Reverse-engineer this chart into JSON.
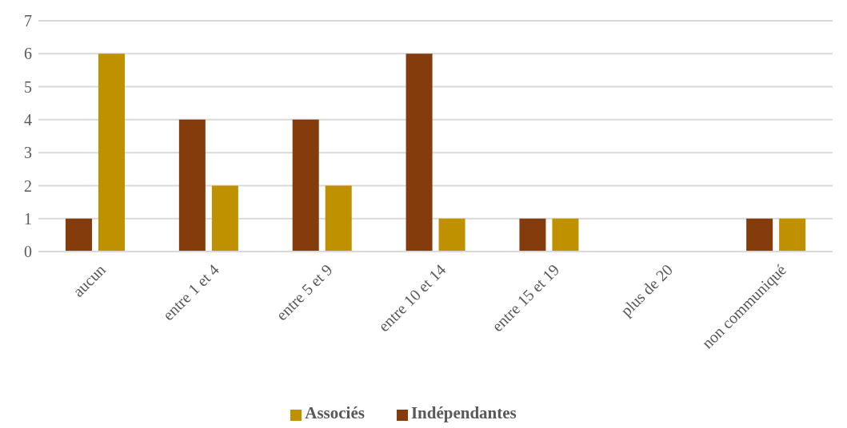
{
  "chart_data": {
    "type": "bar",
    "categories": [
      "aucun",
      "entre 1 et 4",
      "entre 5 et 9",
      "entre 10 et 14",
      "entre 15 et 19",
      "plus de 20",
      "non communiqué"
    ],
    "series": [
      {
        "name": "Indépendantes",
        "color": "#843c0c",
        "values": [
          1,
          4,
          4,
          6,
          1,
          0,
          1
        ]
      },
      {
        "name": "Associés",
        "color": "#bf9000",
        "values": [
          6,
          2,
          2,
          1,
          1,
          0,
          1
        ]
      }
    ],
    "ylim": [
      0,
      7
    ],
    "yticks": [
      0,
      1,
      2,
      3,
      4,
      5,
      6,
      7
    ],
    "grid": "y",
    "legend": "bottom"
  }
}
